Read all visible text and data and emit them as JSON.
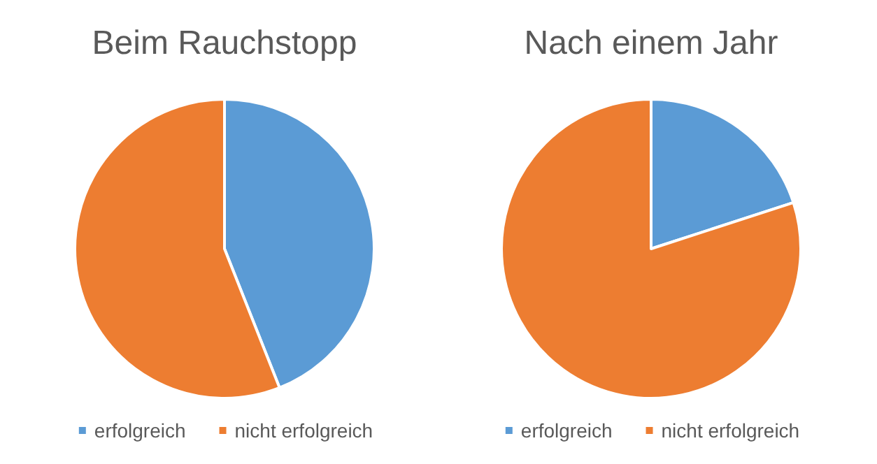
{
  "chart_data": [
    {
      "type": "pie",
      "title": "Beim Rauchstopp",
      "categories": [
        "erfolgreich",
        "nicht erfolgreich"
      ],
      "values": [
        44,
        56
      ],
      "colors": [
        "#5b9bd5",
        "#ed7d31"
      ],
      "legend": "bottom"
    },
    {
      "type": "pie",
      "title": "Nach einem Jahr",
      "categories": [
        "erfolgreich",
        "nicht erfolgreich"
      ],
      "values": [
        20,
        80
      ],
      "colors": [
        "#5b9bd5",
        "#ed7d31"
      ],
      "legend": "bottom"
    }
  ]
}
